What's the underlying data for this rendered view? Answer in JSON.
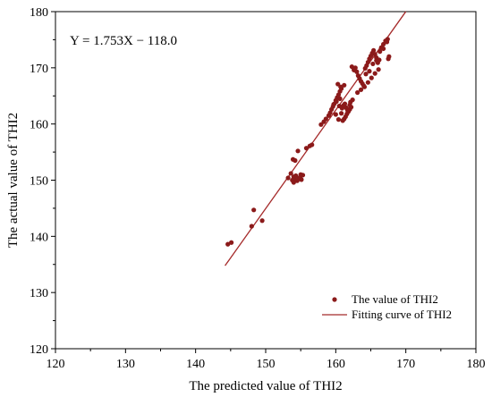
{
  "chart_data": {
    "type": "scatter",
    "xlabel": "The predicted value of THI2",
    "ylabel": "The actual value of THI2",
    "xlim": [
      120,
      180
    ],
    "ylim": [
      120,
      180
    ],
    "xticks": [
      120,
      130,
      140,
      150,
      160,
      170,
      180
    ],
    "yticks": [
      120,
      130,
      140,
      150,
      160,
      170,
      180
    ],
    "annotation": "Y = 1.753X − 118.0",
    "legend_position": "bottom-right",
    "colors": {
      "points": "#8B1A1A",
      "line": "#A52A2A",
      "axis": "#000000"
    },
    "series": [
      {
        "name": "The value of THI2",
        "kind": "scatter",
        "x": [
          144.6,
          145.1,
          148.0,
          148.3,
          149.5,
          153.2,
          153.6,
          153.8,
          154.0,
          154.1,
          154.3,
          154.5,
          154.7,
          154.9,
          155.1,
          153.9,
          154.2,
          155.3,
          154.0,
          155.0,
          154.6,
          155.8,
          156.3,
          156.6,
          157.9,
          158.3,
          158.6,
          159.0,
          159.2,
          159.4,
          159.6,
          159.8,
          160.0,
          160.2,
          160.4,
          160.6,
          160.8,
          161.0,
          161.2,
          161.4,
          161.6,
          161.8,
          162.0,
          162.2,
          159.7,
          160.1,
          160.5,
          160.9,
          161.3,
          161.7,
          162.1,
          160.3,
          160.7,
          161.1,
          161.5,
          162.4,
          160.0,
          160.4,
          160.8,
          161.2,
          161.6,
          162.0,
          160.6,
          162.6,
          162.8,
          163.0,
          163.2,
          163.4,
          163.6,
          163.8,
          164.0,
          164.2,
          164.4,
          164.6,
          164.8,
          165.0,
          165.2,
          165.4,
          165.6,
          165.8,
          166.0,
          166.2,
          166.5,
          166.8,
          167.1,
          167.4,
          167.6,
          162.3,
          162.6,
          163.1,
          163.6,
          164.1,
          164.6,
          165.1,
          165.6,
          166.1,
          164.3,
          164.8,
          165.3,
          165.8,
          166.3,
          166.8,
          167.3,
          167.5
        ],
        "y": [
          138.6,
          138.9,
          141.8,
          144.7,
          142.8,
          150.4,
          151.2,
          150.0,
          150.6,
          150.2,
          150.8,
          149.9,
          150.3,
          150.5,
          150.1,
          153.7,
          153.5,
          150.9,
          149.6,
          151.0,
          155.2,
          155.7,
          156.1,
          156.3,
          159.9,
          160.4,
          160.9,
          161.5,
          162.0,
          162.6,
          163.1,
          163.6,
          164.2,
          164.7,
          165.2,
          165.8,
          166.3,
          160.6,
          160.9,
          161.3,
          161.8,
          162.2,
          162.6,
          163.0,
          163.5,
          164.0,
          163.2,
          162.8,
          163.6,
          162.4,
          163.9,
          167.1,
          166.6,
          163.3,
          162.9,
          164.3,
          161.7,
          160.8,
          161.9,
          166.9,
          162.7,
          163.4,
          164.5,
          169.6,
          170.0,
          169.3,
          168.6,
          168.1,
          167.6,
          167.2,
          166.8,
          169.9,
          170.4,
          171.0,
          171.6,
          172.1,
          172.6,
          173.1,
          172.4,
          171.8,
          170.9,
          171.4,
          173.6,
          174.2,
          174.8,
          175.1,
          172.0,
          170.2,
          169.8,
          165.6,
          166.1,
          166.6,
          167.4,
          168.2,
          169.0,
          169.7,
          168.9,
          169.4,
          170.7,
          171.3,
          172.9,
          173.4,
          174.6,
          171.6
        ]
      },
      {
        "name": "Fitting curve of THI2",
        "kind": "line",
        "slope": 1.753,
        "intercept": -118.0,
        "x_range": [
          144.2,
          170.0
        ]
      }
    ]
  }
}
